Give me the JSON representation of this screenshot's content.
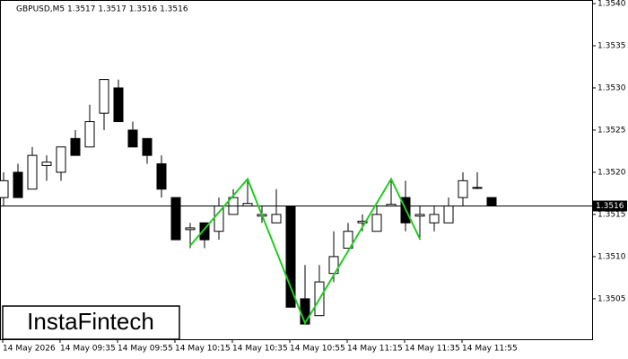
{
  "chart_data": {
    "type": "candlestick",
    "title": "GBPUSD,M5  1.3517 1.3517 1.3516 1.3516",
    "categories": [
      "14 May 2026",
      null,
      null,
      null,
      "14 May 09:35",
      null,
      null,
      null,
      "14 May 09:55",
      null,
      null,
      null,
      "14 May 10:15",
      null,
      null,
      null,
      "14 May 10:35",
      null,
      null,
      null,
      "14 May 10:55",
      null,
      null,
      null,
      "14 May 11:15",
      null,
      null,
      null,
      "14 May 11:35",
      null,
      null,
      null,
      "14 May 11:55",
      null,
      null
    ],
    "open": [
      1.3517,
      1.352,
      1.3518,
      1.35208,
      1.352,
      1.3524,
      1.3523,
      1.3527,
      1.353,
      1.3525,
      1.3524,
      1.3521,
      1.3517,
      1.35132,
      1.3514,
      1.3513,
      1.3515,
      1.3516,
      1.35148,
      1.3514,
      1.3516,
      1.3505,
      1.3503,
      1.3508,
      1.3511,
      1.3514,
      1.3513,
      1.3516,
      1.3517,
      1.35148,
      1.3514,
      1.3514,
      1.3517,
      1.35182,
      1.3517
    ],
    "high": [
      1.352,
      1.3521,
      1.3523,
      1.3522,
      1.3523,
      1.3525,
      1.3528,
      1.3531,
      1.3531,
      1.3526,
      1.3524,
      1.3522,
      1.3517,
      1.3514,
      1.3514,
      1.3517,
      1.3518,
      1.3519,
      1.3516,
      1.3518,
      1.3516,
      1.3509,
      1.3509,
      1.3513,
      1.3514,
      1.3515,
      1.3516,
      1.3519,
      1.3519,
      1.3516,
      1.3516,
      1.3517,
      1.352,
      1.352,
      1.3517
    ],
    "low": [
      1.3516,
      1.3517,
      1.3518,
      1.3519,
      1.3519,
      1.3522,
      1.3523,
      1.3525,
      1.3526,
      1.3523,
      1.3521,
      1.3517,
      1.3512,
      1.3511,
      1.3511,
      1.3512,
      1.3515,
      1.3516,
      1.3514,
      1.3514,
      1.3504,
      1.3502,
      1.3503,
      1.3507,
      1.3511,
      1.3513,
      1.3513,
      1.3516,
      1.3513,
      1.3512,
      1.3513,
      1.3514,
      1.3516,
      1.3518,
      1.3516
    ],
    "close": [
      1.3519,
      1.3517,
      1.3522,
      1.35212,
      1.3523,
      1.3522,
      1.3526,
      1.3531,
      1.3526,
      1.3523,
      1.3522,
      1.3518,
      1.3512,
      1.35134,
      1.3512,
      1.3516,
      1.3517,
      1.35163,
      1.3515,
      1.3515,
      1.3504,
      1.3502,
      1.3507,
      1.351,
      1.3513,
      1.35142,
      1.3515,
      1.35162,
      1.3514,
      1.3515,
      1.3515,
      1.3516,
      1.3519,
      1.35182,
      1.3516
    ],
    "up_color": "#ffffff",
    "down_color": "#000000",
    "ylim": [
      1.35002,
      1.354
    ],
    "yticks": [
      {
        "value": 1.354,
        "label": "1.3540"
      },
      1.3535,
      {
        "value": 1.353,
        "label": "1.3530"
      },
      1.3525,
      {
        "value": 1.352,
        "label": "1.3520"
      },
      1.3515,
      {
        "value": 1.351,
        "label": "1.3510"
      },
      1.3505
    ],
    "last_price": 1.3516,
    "pattern": {
      "color": "#22cc22",
      "x": [
        13,
        17,
        21,
        27,
        29
      ],
      "values": [
        1.35113,
        1.35192,
        1.35021,
        1.35192,
        1.35121
      ]
    },
    "logo": "InstaFintech"
  }
}
